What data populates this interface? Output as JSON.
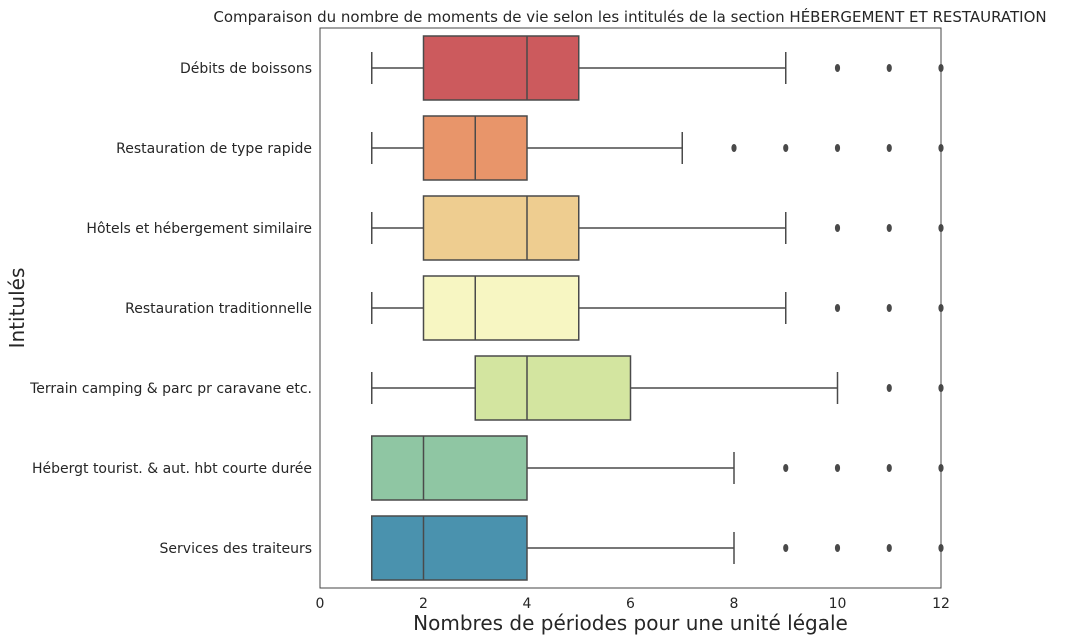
{
  "chart_data": {
    "type": "box",
    "orientation": "horizontal",
    "title": "Comparaison du nombre de moments de vie selon les intitulés de la section HÉBERGEMENT ET RESTAURATION",
    "xlabel": "Nombres de périodes pour une unité légale",
    "ylabel": "Intitulés",
    "xlim": [
      0,
      12
    ],
    "xticks": [
      "0",
      "2",
      "4",
      "6",
      "8",
      "10",
      "12"
    ],
    "grid": false,
    "series": [
      {
        "category": "Débits de boissons",
        "color": "#cc5a5d",
        "whisker_low": 1,
        "q1": 2,
        "median": 4,
        "q3": 5,
        "whisker_high": 9,
        "outliers": [
          10,
          11,
          12
        ]
      },
      {
        "category": "Restauration de type rapide",
        "color": "#e8956a",
        "whisker_low": 1,
        "q1": 2,
        "median": 3,
        "q3": 4,
        "whisker_high": 7,
        "outliers": [
          8,
          9,
          10,
          11,
          12
        ]
      },
      {
        "category": "Hôtels et hébergement similaire",
        "color": "#eecd90",
        "whisker_low": 1,
        "q1": 2,
        "median": 4,
        "q3": 5,
        "whisker_high": 9,
        "outliers": [
          10,
          11,
          12
        ]
      },
      {
        "category": "Restauration traditionnelle",
        "color": "#f7f6c2",
        "whisker_low": 1,
        "q1": 2,
        "median": 3,
        "q3": 5,
        "whisker_high": 9,
        "outliers": [
          10,
          11,
          12
        ]
      },
      {
        "category": "Terrain camping & parc pr caravane etc.",
        "color": "#d3e5a0",
        "whisker_low": 1,
        "q1": 3,
        "median": 4,
        "q3": 6,
        "whisker_high": 10,
        "outliers": [
          11,
          12
        ]
      },
      {
        "category": "Hébergt tourist. & aut. hbt courte durée",
        "color": "#8fc6a3",
        "whisker_low": 1,
        "q1": 1,
        "median": 2,
        "q3": 4,
        "whisker_high": 8,
        "outliers": [
          9,
          10,
          11,
          12
        ]
      },
      {
        "category": "Services des traiteurs",
        "color": "#4a92ae",
        "whisker_low": 1,
        "q1": 1,
        "median": 2,
        "q3": 4,
        "whisker_high": 8,
        "outliers": [
          9,
          10,
          11,
          12
        ]
      }
    ]
  }
}
